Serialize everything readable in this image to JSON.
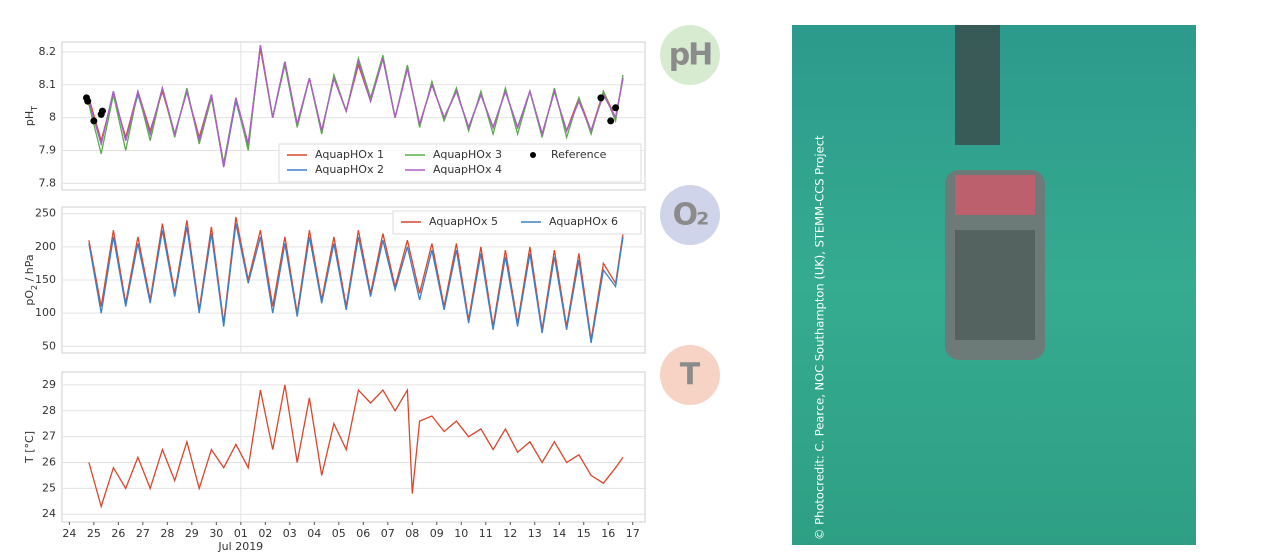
{
  "chart_data": [
    {
      "type": "line",
      "ylabel": [
        "pH",
        "T"
      ],
      "xlim": [
        -0.3,
        23.5
      ],
      "ylim": [
        7.78,
        8.23
      ],
      "yticks": [
        7.8,
        7.9,
        8.0,
        8.1,
        8.2
      ],
      "grid": true,
      "legend": "lower right",
      "legend_columns": 3,
      "x": [
        0.8,
        1.3,
        1.8,
        2.3,
        2.8,
        3.3,
        3.8,
        4.3,
        4.8,
        5.3,
        5.8,
        6.3,
        6.8,
        7.3,
        7.8,
        8.3,
        8.8,
        9.3,
        9.8,
        10.3,
        10.8,
        11.3,
        11.8,
        12.3,
        12.8,
        13.3,
        13.8,
        14.3,
        14.8,
        15.3,
        15.8,
        16.3,
        16.8,
        17.3,
        17.8,
        18.3,
        18.8,
        19.3,
        19.8,
        20.3,
        20.8,
        21.3,
        21.8,
        22.3,
        22.6
      ],
      "series": [
        {
          "name": "AquapHOx 1",
          "color": "#d9472b",
          "values": [
            8.06,
            7.93,
            8.07,
            7.94,
            8.08,
            7.96,
            8.08,
            7.95,
            8.08,
            7.94,
            8.07,
            7.86,
            8.06,
            7.92,
            8.21,
            8.0,
            8.17,
            7.98,
            8.12,
            7.96,
            8.12,
            8.02,
            8.16,
            8.05,
            8.18,
            8.0,
            8.15,
            7.98,
            8.1,
            8.0,
            8.08,
            7.97,
            8.07,
            7.97,
            8.08,
            7.97,
            8.08,
            7.95,
            8.08,
            7.96,
            8.06,
            7.96,
            8.08,
            8.0,
            8.12
          ]
        },
        {
          "name": "AquapHOx 2",
          "color": "#3b80c8",
          "values": [
            8.05,
            7.92,
            8.08,
            7.93,
            8.07,
            7.95,
            8.09,
            7.95,
            8.08,
            7.93,
            8.07,
            7.85,
            8.05,
            7.91,
            8.22,
            8.0,
            8.17,
            7.98,
            8.12,
            7.96,
            8.12,
            8.02,
            8.17,
            8.05,
            8.18,
            8.0,
            8.15,
            7.98,
            8.1,
            8.0,
            8.08,
            7.97,
            8.07,
            7.97,
            8.08,
            7.97,
            8.08,
            7.95,
            8.08,
            7.96,
            8.05,
            7.96,
            8.07,
            8.0,
            8.12
          ]
        },
        {
          "name": "AquapHOx 3",
          "color": "#5aab4c",
          "values": [
            8.04,
            7.89,
            8.07,
            7.9,
            8.08,
            7.93,
            8.09,
            7.94,
            8.09,
            7.92,
            8.06,
            7.86,
            8.06,
            7.9,
            8.22,
            8.0,
            8.16,
            7.97,
            8.12,
            7.95,
            8.13,
            8.02,
            8.18,
            8.06,
            8.19,
            8.0,
            8.16,
            7.97,
            8.11,
            7.99,
            8.09,
            7.96,
            8.08,
            7.95,
            8.09,
            7.95,
            8.08,
            7.94,
            8.09,
            7.94,
            8.06,
            7.95,
            8.08,
            7.99,
            8.13
          ]
        },
        {
          "name": "AquapHOx 4",
          "color": "#b05dc6",
          "values": [
            8.05,
            7.92,
            8.08,
            7.93,
            8.08,
            7.95,
            8.09,
            7.95,
            8.08,
            7.93,
            8.07,
            7.85,
            8.06,
            7.92,
            8.22,
            8.0,
            8.17,
            7.98,
            8.12,
            7.96,
            8.12,
            8.02,
            8.17,
            8.05,
            8.18,
            8.0,
            8.15,
            7.98,
            8.1,
            8.0,
            8.08,
            7.97,
            8.07,
            7.97,
            8.08,
            7.97,
            8.08,
            7.95,
            8.08,
            7.96,
            8.05,
            7.96,
            8.07,
            8.0,
            8.12
          ]
        }
      ],
      "reference": {
        "name": "Reference",
        "color": "#000000",
        "x": [
          0.7,
          0.75,
          1.0,
          1.3,
          1.35,
          21.7,
          22.1,
          22.3
        ],
        "values": [
          8.06,
          8.05,
          7.99,
          8.01,
          8.02,
          8.06,
          7.99,
          8.03
        ]
      }
    },
    {
      "type": "line",
      "ylabel": [
        "pO",
        "2",
        " / hPa"
      ],
      "xlim": [
        -0.3,
        23.5
      ],
      "ylim": [
        40,
        260
      ],
      "yticks": [
        50,
        100,
        150,
        200,
        250
      ],
      "grid": true,
      "legend": "upper right",
      "legend_columns": 2,
      "x": [
        0.8,
        1.3,
        1.8,
        2.3,
        2.8,
        3.3,
        3.8,
        4.3,
        4.8,
        5.3,
        5.8,
        6.3,
        6.8,
        7.3,
        7.8,
        8.3,
        8.8,
        9.3,
        9.8,
        10.3,
        10.8,
        11.3,
        11.8,
        12.3,
        12.8,
        13.3,
        13.8,
        14.3,
        14.8,
        15.3,
        15.8,
        16.3,
        16.8,
        17.3,
        17.8,
        18.3,
        18.8,
        19.3,
        19.8,
        20.3,
        20.8,
        21.3,
        21.8,
        22.3,
        22.6
      ],
      "series": [
        {
          "name": "AquapHOx 5",
          "color": "#d9472b",
          "values": [
            210,
            110,
            225,
            115,
            215,
            120,
            235,
            130,
            240,
            105,
            230,
            85,
            245,
            150,
            225,
            110,
            215,
            100,
            225,
            120,
            215,
            110,
            225,
            130,
            220,
            140,
            210,
            130,
            205,
            110,
            205,
            90,
            200,
            80,
            195,
            85,
            200,
            75,
            195,
            80,
            190,
            60,
            175,
            145,
            220
          ]
        },
        {
          "name": "AquapHOx 6",
          "color": "#3b80c8",
          "values": [
            205,
            100,
            215,
            110,
            205,
            115,
            225,
            125,
            230,
            100,
            220,
            80,
            235,
            145,
            215,
            100,
            205,
            95,
            215,
            115,
            205,
            105,
            215,
            125,
            210,
            135,
            200,
            120,
            195,
            105,
            195,
            85,
            190,
            75,
            185,
            80,
            190,
            70,
            185,
            75,
            180,
            55,
            165,
            140,
            215
          ]
        }
      ]
    },
    {
      "type": "line",
      "ylabel": [
        "T [°C]"
      ],
      "xlim": [
        -0.3,
        23.5
      ],
      "ylim": [
        23.7,
        29.5
      ],
      "yticks": [
        24,
        25,
        26,
        27,
        28,
        29
      ],
      "grid": true,
      "xticks": [
        {
          "value": 0,
          "label": "24"
        },
        {
          "value": 1,
          "label": "25"
        },
        {
          "value": 2,
          "label": "26"
        },
        {
          "value": 3,
          "label": "27"
        },
        {
          "value": 4,
          "label": "28"
        },
        {
          "value": 5,
          "label": "29"
        },
        {
          "value": 6,
          "label": "30"
        },
        {
          "value": 7,
          "label": "01"
        },
        {
          "value": 8,
          "label": "02"
        },
        {
          "value": 9,
          "label": "03"
        },
        {
          "value": 10,
          "label": "04"
        },
        {
          "value": 11,
          "label": "05"
        },
        {
          "value": 12,
          "label": "06"
        },
        {
          "value": 13,
          "label": "07"
        },
        {
          "value": 14,
          "label": "08"
        },
        {
          "value": 15,
          "label": "09"
        },
        {
          "value": 16,
          "label": "10"
        },
        {
          "value": 17,
          "label": "11"
        },
        {
          "value": 18,
          "label": "12"
        },
        {
          "value": 19,
          "label": "13"
        },
        {
          "value": 20,
          "label": "14"
        },
        {
          "value": 21,
          "label": "15"
        },
        {
          "value": 22,
          "label": "16"
        },
        {
          "value": 23,
          "label": "17"
        }
      ],
      "annotation": {
        "text": "Jul 2019",
        "x": 7
      },
      "x": [
        0.8,
        1.3,
        1.8,
        2.3,
        2.8,
        3.3,
        3.8,
        4.3,
        4.8,
        5.3,
        5.8,
        6.3,
        6.8,
        7.3,
        7.8,
        8.3,
        8.8,
        9.3,
        9.8,
        10.3,
        10.8,
        11.3,
        11.8,
        12.3,
        12.8,
        13.3,
        13.8,
        14.0,
        14.3,
        14.8,
        15.3,
        15.8,
        16.3,
        16.8,
        17.3,
        17.8,
        18.3,
        18.8,
        19.3,
        19.8,
        20.3,
        20.8,
        21.3,
        21.8,
        22.3,
        22.6
      ],
      "series": [
        {
          "name": "T",
          "color": "#d9472b",
          "values": [
            26.0,
            24.3,
            25.8,
            25.0,
            26.2,
            25.0,
            26.5,
            25.3,
            26.8,
            25.0,
            26.5,
            25.8,
            26.7,
            25.8,
            28.8,
            26.5,
            29.0,
            26.0,
            28.5,
            25.5,
            27.5,
            26.5,
            28.8,
            28.3,
            28.8,
            28.0,
            28.8,
            24.8,
            27.6,
            27.8,
            27.2,
            27.6,
            27.0,
            27.3,
            26.5,
            27.3,
            26.4,
            26.8,
            26.0,
            26.8,
            26.0,
            26.3,
            25.5,
            25.2,
            25.8,
            26.2
          ]
        }
      ]
    }
  ],
  "icons": [
    "pH",
    "O₂",
    "T"
  ],
  "photo": {
    "credit": "© Photocredit: C. Pearce, NOC Southampton (UK), STEMM-CCS Project"
  }
}
